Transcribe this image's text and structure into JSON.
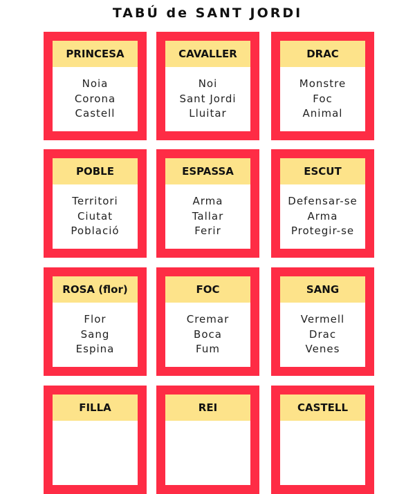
{
  "title": "TABÚ de SANT JORDI",
  "colors": {
    "border": "#fe2c45",
    "header": "#fde38a"
  },
  "cards": [
    {
      "word": "PRINCESA",
      "taboo": [
        "Noia",
        "Corona",
        "Castell"
      ]
    },
    {
      "word": "CAVALLER",
      "taboo": [
        "Noi",
        "Sant Jordi",
        "Lluitar"
      ]
    },
    {
      "word": "DRAC",
      "taboo": [
        "Monstre",
        "Foc",
        "Animal"
      ]
    },
    {
      "word": "POBLE",
      "taboo": [
        "Territori",
        "Ciutat",
        "Població"
      ]
    },
    {
      "word": "ESPASSA",
      "taboo": [
        "Arma",
        "Tallar",
        "Ferir"
      ]
    },
    {
      "word": "ESCUT",
      "taboo": [
        "Defensar-se",
        "Arma",
        "Protegir-se"
      ]
    },
    {
      "word": "ROSA (flor)",
      "taboo": [
        "Flor",
        "Sang",
        "Espina"
      ]
    },
    {
      "word": "FOC",
      "taboo": [
        "Cremar",
        "Boca",
        "Fum"
      ]
    },
    {
      "word": "SANG",
      "taboo": [
        "Vermell",
        "Drac",
        "Venes"
      ]
    },
    {
      "word": "FILLA",
      "taboo": []
    },
    {
      "word": "REI",
      "taboo": []
    },
    {
      "word": "CASTELL",
      "taboo": []
    }
  ]
}
